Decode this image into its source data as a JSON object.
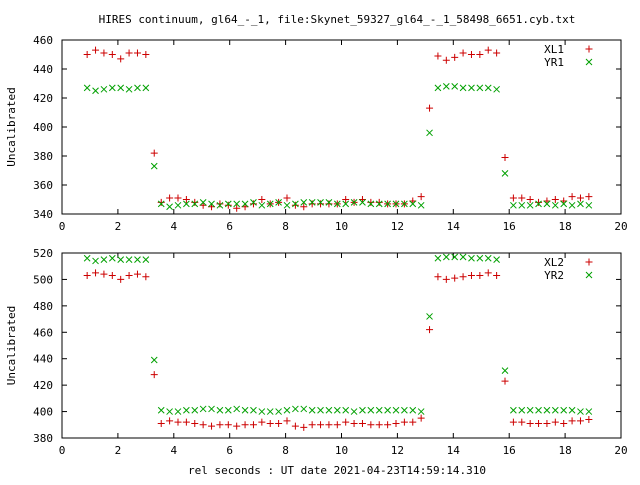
{
  "title": "HIRES continuum, gl64_-_1, file:Skynet_59327_gl64_-_1_58498_6651.cyb.txt",
  "xlabel": "rel seconds : UT date 2021-04-23T14:59:14.310",
  "colors": {
    "plus": "#cc0000",
    "cross": "#00a000",
    "frame": "#000000"
  },
  "chart_data": [
    {
      "type": "scatter",
      "ylabel": "Uncalibrated",
      "xlim": [
        0,
        20
      ],
      "ylim": [
        340,
        460
      ],
      "xticks": [
        0,
        2,
        4,
        6,
        8,
        10,
        12,
        14,
        16,
        18,
        20
      ],
      "yticks": [
        340,
        360,
        380,
        400,
        420,
        440,
        460
      ],
      "legend_position": "top-right",
      "series": [
        {
          "name": "XL1",
          "marker": "plus",
          "x": [
            0.9,
            1.2,
            1.5,
            1.8,
            2.1,
            2.4,
            2.7,
            3.0,
            3.3,
            3.55,
            3.85,
            4.15,
            4.45,
            4.75,
            5.05,
            5.35,
            5.65,
            5.95,
            6.25,
            6.55,
            6.85,
            7.15,
            7.45,
            7.75,
            8.05,
            8.35,
            8.65,
            8.95,
            9.25,
            9.55,
            9.85,
            10.15,
            10.45,
            10.75,
            11.05,
            11.35,
            11.65,
            11.95,
            12.25,
            12.55,
            12.85,
            13.15,
            13.45,
            13.75,
            14.05,
            14.35,
            14.65,
            14.95,
            15.25,
            15.55,
            15.85,
            16.15,
            16.45,
            16.75,
            17.05,
            17.35,
            17.65,
            17.95,
            18.25,
            18.55,
            18.85
          ],
          "y": [
            450,
            453,
            451,
            450,
            447,
            451,
            451,
            450,
            382,
            348,
            351,
            351,
            350,
            348,
            346,
            345,
            347,
            346,
            344,
            345,
            347,
            350,
            347,
            348,
            351,
            346,
            345,
            347,
            347,
            347,
            347,
            350,
            348,
            350,
            348,
            348,
            347,
            347,
            347,
            349,
            352,
            413,
            449,
            446,
            448,
            451,
            450,
            450,
            453,
            451,
            379,
            351,
            351,
            350,
            348,
            349,
            350,
            349,
            352,
            351,
            352
          ]
        },
        {
          "name": "YR1",
          "marker": "cross",
          "x": [
            0.9,
            1.2,
            1.5,
            1.8,
            2.1,
            2.4,
            2.7,
            3.0,
            3.3,
            3.55,
            3.85,
            4.15,
            4.45,
            4.75,
            5.05,
            5.35,
            5.65,
            5.95,
            6.25,
            6.55,
            6.85,
            7.15,
            7.45,
            7.75,
            8.05,
            8.35,
            8.65,
            8.95,
            9.25,
            9.55,
            9.85,
            10.15,
            10.45,
            10.75,
            11.05,
            11.35,
            11.65,
            11.95,
            12.25,
            12.55,
            12.85,
            13.15,
            13.45,
            13.75,
            14.05,
            14.35,
            14.65,
            14.95,
            15.25,
            15.55,
            15.85,
            16.15,
            16.45,
            16.75,
            17.05,
            17.35,
            17.65,
            17.95,
            18.25,
            18.55,
            18.85
          ],
          "y": [
            427,
            425,
            426,
            427,
            427,
            426,
            427,
            427,
            373,
            347,
            345,
            346,
            347,
            347,
            348,
            347,
            346,
            347,
            347,
            347,
            348,
            346,
            347,
            348,
            346,
            347,
            348,
            348,
            348,
            348,
            347,
            347,
            348,
            348,
            347,
            347,
            347,
            347,
            347,
            347,
            346,
            396,
            427,
            428,
            428,
            427,
            427,
            427,
            427,
            426,
            368,
            346,
            346,
            346,
            347,
            347,
            346,
            347,
            346,
            347,
            346
          ]
        }
      ]
    },
    {
      "type": "scatter",
      "ylabel": "Uncalibrated",
      "xlim": [
        0,
        20
      ],
      "ylim": [
        380,
        520
      ],
      "xticks": [
        0,
        2,
        4,
        6,
        8,
        10,
        12,
        14,
        16,
        18,
        20
      ],
      "yticks": [
        380,
        400,
        420,
        440,
        460,
        480,
        500,
        520
      ],
      "legend_position": "top-right",
      "series": [
        {
          "name": "XL2",
          "marker": "plus",
          "x": [
            0.9,
            1.2,
            1.5,
            1.8,
            2.1,
            2.4,
            2.7,
            3.0,
            3.3,
            3.55,
            3.85,
            4.15,
            4.45,
            4.75,
            5.05,
            5.35,
            5.65,
            5.95,
            6.25,
            6.55,
            6.85,
            7.15,
            7.45,
            7.75,
            8.05,
            8.35,
            8.65,
            8.95,
            9.25,
            9.55,
            9.85,
            10.15,
            10.45,
            10.75,
            11.05,
            11.35,
            11.65,
            11.95,
            12.25,
            12.55,
            12.85,
            13.15,
            13.45,
            13.75,
            14.05,
            14.35,
            14.65,
            14.95,
            15.25,
            15.55,
            15.85,
            16.15,
            16.45,
            16.75,
            17.05,
            17.35,
            17.65,
            17.95,
            18.25,
            18.55,
            18.85
          ],
          "y": [
            503,
            505,
            504,
            503,
            500,
            503,
            504,
            502,
            428,
            391,
            393,
            392,
            392,
            391,
            390,
            389,
            390,
            390,
            389,
            390,
            390,
            392,
            391,
            391,
            393,
            389,
            388,
            390,
            390,
            390,
            390,
            392,
            391,
            391,
            390,
            390,
            390,
            391,
            392,
            392,
            395,
            462,
            502,
            500,
            501,
            502,
            503,
            503,
            505,
            503,
            423,
            392,
            392,
            391,
            391,
            391,
            392,
            391,
            393,
            393,
            394
          ]
        },
        {
          "name": "YR2",
          "marker": "cross",
          "x": [
            0.9,
            1.2,
            1.5,
            1.8,
            2.1,
            2.4,
            2.7,
            3.0,
            3.3,
            3.55,
            3.85,
            4.15,
            4.45,
            4.75,
            5.05,
            5.35,
            5.65,
            5.95,
            6.25,
            6.55,
            6.85,
            7.15,
            7.45,
            7.75,
            8.05,
            8.35,
            8.65,
            8.95,
            9.25,
            9.55,
            9.85,
            10.15,
            10.45,
            10.75,
            11.05,
            11.35,
            11.65,
            11.95,
            12.25,
            12.55,
            12.85,
            13.15,
            13.45,
            13.75,
            14.05,
            14.35,
            14.65,
            14.95,
            15.25,
            15.55,
            15.85,
            16.15,
            16.45,
            16.75,
            17.05,
            17.35,
            17.65,
            17.95,
            18.25,
            18.55,
            18.85
          ],
          "y": [
            516,
            514,
            515,
            516,
            515,
            515,
            515,
            515,
            439,
            401,
            400,
            400,
            401,
            401,
            402,
            402,
            401,
            401,
            402,
            401,
            401,
            400,
            400,
            400,
            401,
            402,
            402,
            401,
            401,
            401,
            401,
            401,
            400,
            401,
            401,
            401,
            401,
            401,
            401,
            401,
            400,
            472,
            516,
            517,
            517,
            517,
            516,
            516,
            516,
            515,
            431,
            401,
            401,
            401,
            401,
            401,
            401,
            401,
            401,
            400,
            400
          ]
        }
      ]
    }
  ]
}
